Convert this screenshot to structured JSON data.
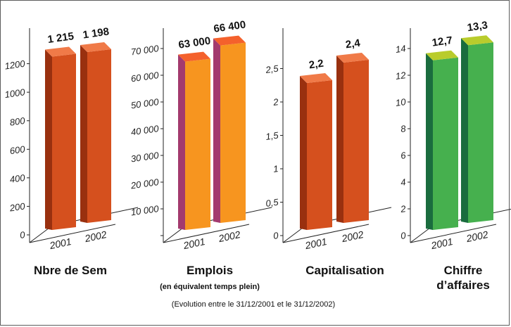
{
  "chart_data": [
    {
      "type": "bar",
      "title": "Nbre de Sem",
      "subtitle": "",
      "categories": [
        "2001",
        "2002"
      ],
      "values": [
        1215,
        1198
      ],
      "value_labels": [
        "1 215",
        "1 198"
      ],
      "yticks": [
        0,
        200,
        400,
        600,
        800,
        1000,
        1200
      ],
      "ytick_labels": [
        "0",
        "200",
        "400",
        "600",
        "800",
        "1000",
        "1200"
      ],
      "ylim": [
        0,
        1400
      ],
      "colors": {
        "front": "#d5501e",
        "side": "#99300f",
        "top": "#f07a48"
      }
    },
    {
      "type": "bar",
      "title": "Emplois",
      "subtitle": "(en équivalent temps plein)",
      "categories": [
        "2001",
        "2002"
      ],
      "values": [
        63000,
        66400
      ],
      "value_labels": [
        "63 000",
        "66 400"
      ],
      "yticks": [
        0,
        10000,
        20000,
        30000,
        40000,
        50000,
        60000,
        70000
      ],
      "ytick_labels": [
        "",
        "10 000",
        "20 000",
        "30 000",
        "40 000",
        "50 000",
        "60 000",
        "70 000"
      ],
      "ylim": [
        0,
        75000
      ],
      "colors": {
        "front": "#f7951f",
        "side": "#a33a6e",
        "top": "#f4612c"
      }
    },
    {
      "type": "bar",
      "title": "Capitalisation",
      "subtitle": "",
      "categories": [
        "2001",
        "2002"
      ],
      "values": [
        2.2,
        2.4
      ],
      "value_labels": [
        "2,2",
        "2,4"
      ],
      "yticks": [
        0,
        0.5,
        1,
        1.5,
        2,
        2.5
      ],
      "ytick_labels": [
        "0",
        "0,5",
        "1",
        "1,5",
        "2",
        "2,5"
      ],
      "ylim": [
        0,
        3.0
      ],
      "colors": {
        "front": "#d5501e",
        "side": "#99300f",
        "top": "#f07a48"
      }
    },
    {
      "type": "bar",
      "title": "Chiffre d’affaires",
      "subtitle": "",
      "categories": [
        "2001",
        "2002"
      ],
      "values": [
        12.7,
        13.3
      ],
      "value_labels": [
        "12,7",
        "13,3"
      ],
      "yticks": [
        0,
        2,
        4,
        6,
        8,
        10,
        12,
        14
      ],
      "ytick_labels": [
        "0",
        "2",
        "4",
        "6",
        "8",
        "10",
        "12",
        "14"
      ],
      "ylim": [
        0,
        15
      ],
      "colors": {
        "front": "#46b04e",
        "side": "#1a6c3e",
        "top": "#b9cc2c"
      }
    }
  ],
  "footnote": "(Evolution entre le 31/12/2001 et le 31/12/2002)",
  "frame_color": "#5c5c5c"
}
